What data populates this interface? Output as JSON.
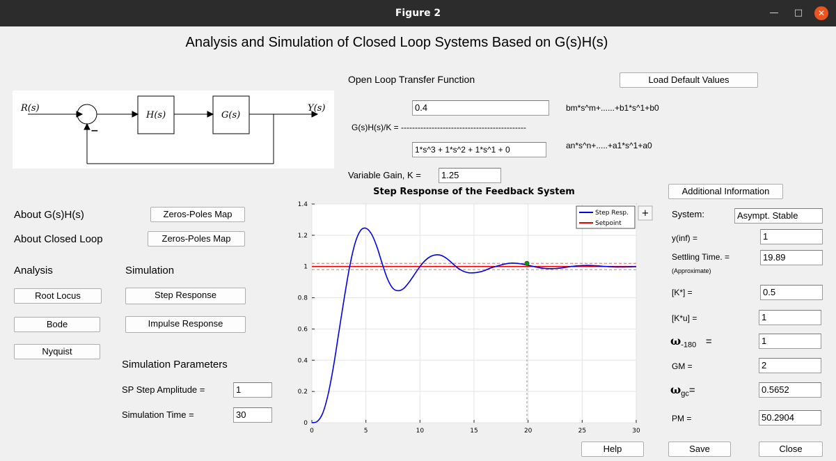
{
  "window": {
    "title": "Figure 2",
    "minimize_glyph": "—",
    "maximize_glyph": "□",
    "close_glyph": "✕"
  },
  "main_title": "Analysis and Simulation of Closed Loop Systems Based on G(s)H(s)",
  "block_diagram": {
    "input": "R(s)",
    "output": "Y(s)",
    "block1": "H(s)",
    "block2": "G(s)",
    "sign": "−"
  },
  "tf": {
    "heading": "Open Loop Transfer Function",
    "load_default_label": "Load Default Values",
    "numerator": "0.4",
    "denominator": "1*s^3 + 1*s^2 + 1*s^1 + 0",
    "numerator_hint": "bm*s^m+......+b1*s^1+b0",
    "denominator_hint": "an*s^n+.....+a1*s^1+a0",
    "lhs": "G(s)H(s)/K = ---------------------------------------------",
    "gain_label": "Variable Gain, K =",
    "gain_value": "1.25"
  },
  "left": {
    "about_gh": "About G(s)H(s)",
    "about_cl": "About Closed Loop",
    "zp_map_1": "Zeros-Poles Map",
    "zp_map_2": "Zeros-Poles Map",
    "analysis": "Analysis",
    "simulation": "Simulation",
    "root_locus": "Root Locus",
    "bode": "Bode",
    "nyquist": "Nyquist",
    "step_response": "Step Response",
    "impulse_response": "Impulse Response",
    "sim_params": "Simulation Parameters",
    "sp_amp_label": "SP Step Amplitude =",
    "sp_amp_value": "1",
    "sim_time_label": "Simulation Time =",
    "sim_time_value": "30"
  },
  "right": {
    "additional_info": "Additional Information",
    "system_label": "System:",
    "system_value": "Asympt. Stable",
    "yinf_label": "y(inf) =",
    "yinf_value": "1",
    "settling_label": "Settling Time. =",
    "settling_note": "(Approximate)",
    "settling_value": "19.89",
    "kstar_label": "[K*] =",
    "kstar_value": "0.5",
    "ku_label": "[K*u] =",
    "ku_value": "1",
    "w180_sym": "ω",
    "w180_sub": "-180",
    "w180_eq": "=",
    "w180_value": "1",
    "gm_label": "GM =",
    "gm_value": "2",
    "wgc_sym": "ω",
    "wgc_sub": "gc",
    "wgc_eq": "=",
    "wgc_value": "0.5652",
    "pm_label": "PM =",
    "pm_value": "50.2904"
  },
  "bottom": {
    "help": "Help",
    "save": "Save",
    "close": "Close"
  },
  "chart_data": {
    "type": "line",
    "title": "Step Response of the Feedback System",
    "xlim": [
      0,
      30
    ],
    "ylim": [
      0,
      1.4
    ],
    "xticks": [
      0,
      5,
      10,
      15,
      20,
      25,
      30
    ],
    "yticks": [
      0,
      0.2,
      0.4,
      0.6,
      0.8,
      1,
      1.2,
      1.4
    ],
    "grid": true,
    "legend_position": "top-right",
    "legend_expand": "+",
    "colors": {
      "step": "#0000e6",
      "setpoint": "#e60000",
      "band": "#e08080",
      "marker": "#1a8a1a"
    },
    "series": [
      {
        "name": "Step Resp.",
        "x": [
          0,
          0.5,
          1,
          1.5,
          2,
          2.5,
          3,
          3.5,
          4,
          4.5,
          5,
          5.5,
          6,
          6.5,
          7,
          7.5,
          8,
          8.5,
          9,
          9.5,
          10,
          10.5,
          11,
          11.5,
          12,
          12.5,
          13,
          13.5,
          14,
          14.5,
          15,
          15.5,
          16,
          16.5,
          17,
          17.5,
          18,
          18.5,
          19,
          19.5,
          20,
          20.5,
          21,
          21.5,
          22,
          22.5,
          23,
          23.5,
          24,
          24.5,
          25,
          25.5,
          26,
          26.5,
          27,
          27.5,
          28,
          28.5,
          29,
          29.5,
          30
        ],
        "y": [
          0,
          0.008,
          0.06,
          0.18,
          0.36,
          0.58,
          0.8,
          1.0,
          1.15,
          1.23,
          1.245,
          1.21,
          1.13,
          1.02,
          0.92,
          0.86,
          0.845,
          0.86,
          0.9,
          0.95,
          1.0,
          1.04,
          1.065,
          1.075,
          1.07,
          1.05,
          1.02,
          0.99,
          0.97,
          0.96,
          0.96,
          0.965,
          0.975,
          0.99,
          1.0,
          1.01,
          1.018,
          1.022,
          1.02,
          1.015,
          1.008,
          1.0,
          0.993,
          0.988,
          0.986,
          0.987,
          0.99,
          0.995,
          1.0,
          1.004,
          1.006,
          1.007,
          1.006,
          1.004,
          1.001,
          0.999,
          0.997,
          0.997,
          0.997,
          0.998,
          0.999
        ]
      },
      {
        "name": "Setpoint",
        "x": [
          0,
          30
        ],
        "y": [
          1,
          1
        ]
      }
    ],
    "settling_band": [
      0.98,
      1.02
    ],
    "settling_marker": {
      "x": 19.89,
      "y": 1.02
    }
  }
}
